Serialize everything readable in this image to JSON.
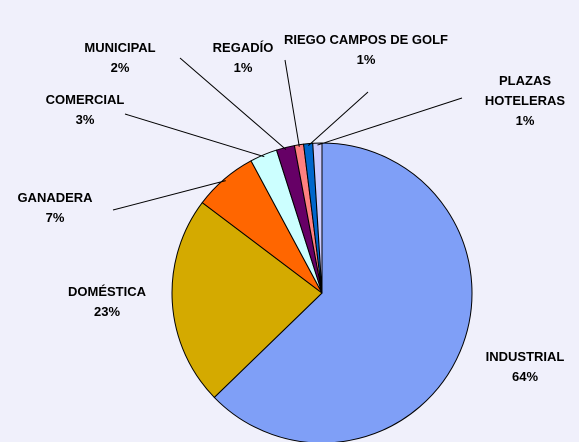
{
  "chart_data": {
    "type": "pie",
    "categories": [
      "INDUSTRIAL",
      "DOMÉSTICA",
      "GANADERA",
      "COMERCIAL",
      "MUNICIPAL",
      "REGADÍO",
      "RIEGO CAMPOS DE GOLF",
      "PLAZAS HOTELERAS"
    ],
    "values": [
      64,
      23,
      7,
      3,
      2,
      1,
      1,
      1
    ],
    "value_labels": [
      "64%",
      "23%",
      "7%",
      "3%",
      "2%",
      "1%",
      "1%",
      "1%"
    ],
    "colors": [
      "#7f9ff7",
      "#d4aa00",
      "#ff6600",
      "#ccffff",
      "#660066",
      "#ff8080",
      "#0066cc",
      "#ccccff"
    ]
  }
}
